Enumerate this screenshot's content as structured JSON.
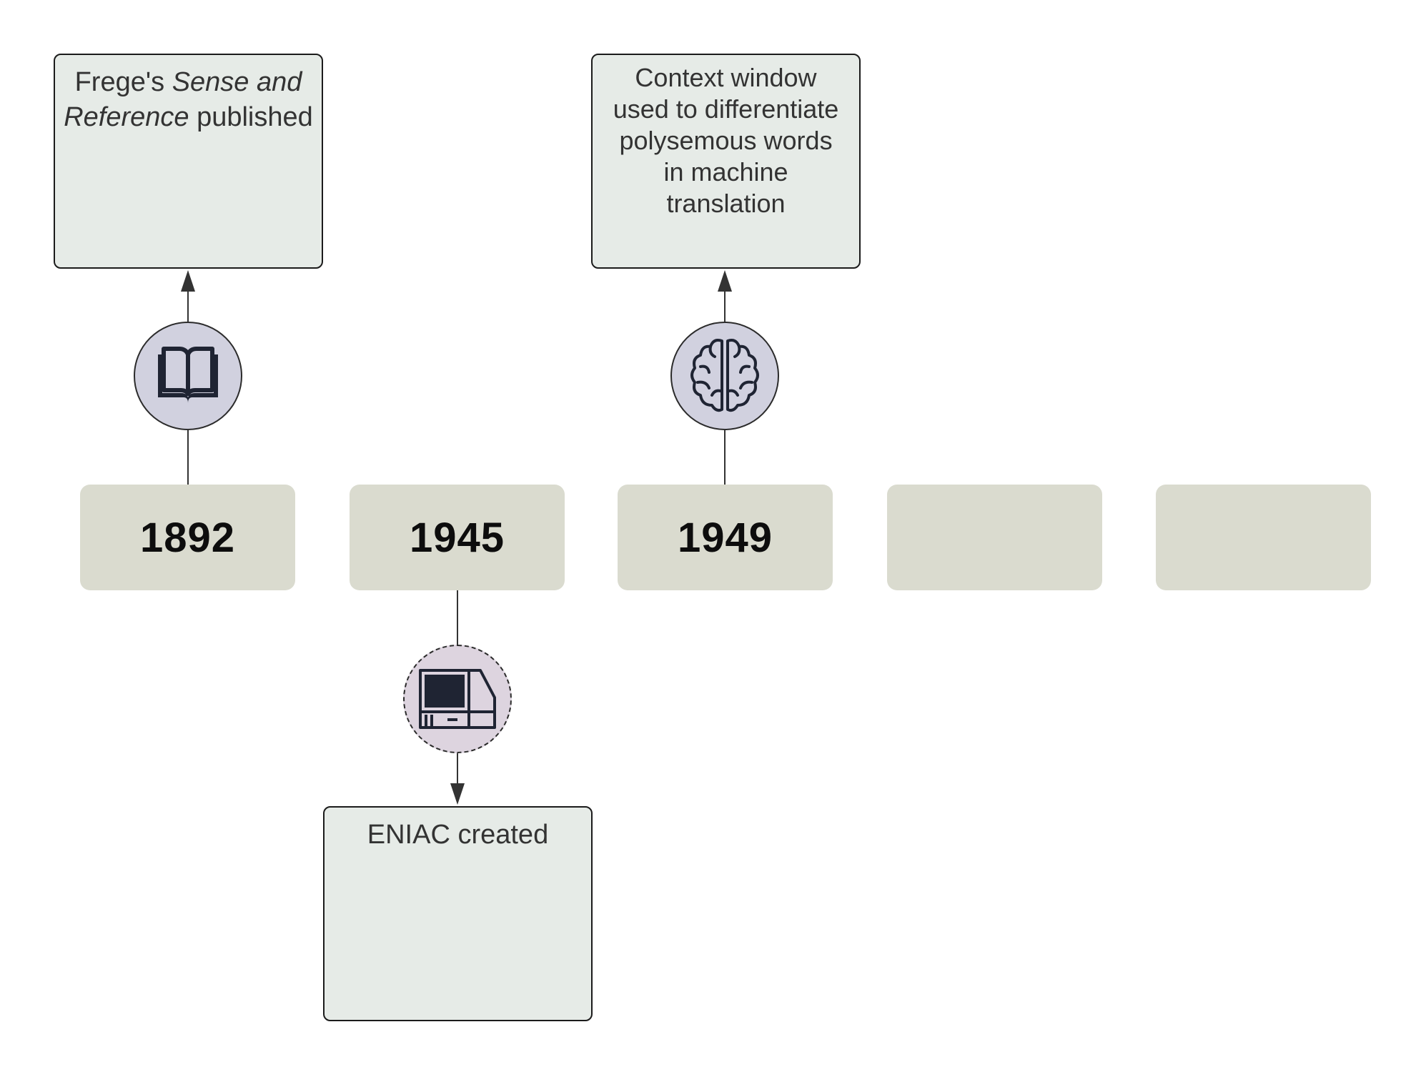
{
  "events": [
    {
      "year": "1892",
      "icon": "open-book-icon",
      "placement": "above",
      "text_before": "Frege's ",
      "text_italic": "Sense and Reference",
      "text_after": " published"
    },
    {
      "year": "1945",
      "icon": "computer-terminal-icon",
      "placement": "below",
      "text": "ENIAC created"
    },
    {
      "year": "1949",
      "icon": "brain-icon",
      "placement": "above",
      "text": "Context window used to differentiate polysemous words in machine translation"
    }
  ],
  "empty_year_slots": 2,
  "colors": {
    "event_box_fill": "#e6ebe7",
    "year_box_fill": "#dadbcf",
    "icon_circle_fill": "#d1d1df",
    "icon_circle_dashed_fill": "#ddd4df",
    "icon_ink": "#1f2433",
    "line": "#333333"
  }
}
